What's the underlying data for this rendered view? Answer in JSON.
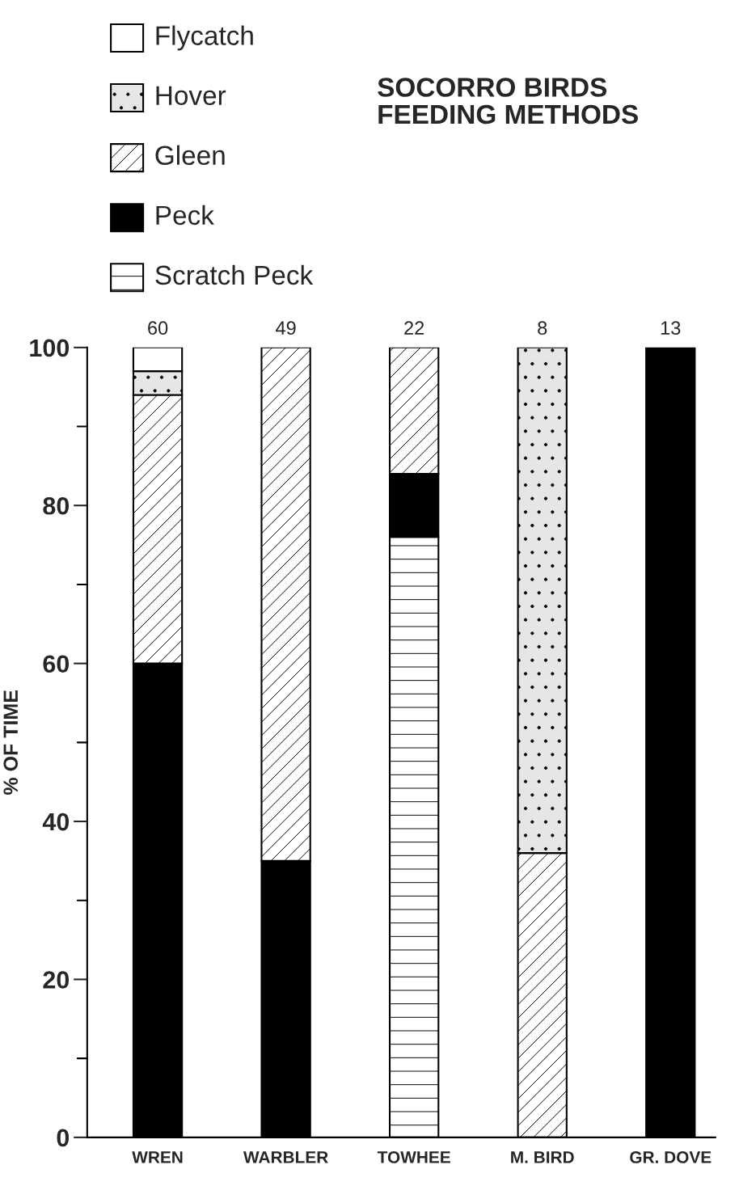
{
  "chart_data": {
    "type": "bar",
    "stacked": true,
    "title": "SOCORRO BIRDS\nFEEDING METHODS",
    "ylabel": "% OF TIME",
    "categories": [
      "WREN",
      "WARBLER",
      "TOWHEE",
      "M. BIRD",
      "GR. DOVE"
    ],
    "series": [
      {
        "name": "Scratch Peck",
        "color": "#ffffff",
        "values": [
          0,
          0,
          76,
          0,
          0
        ]
      },
      {
        "name": "Peck",
        "color": "#000000",
        "values": [
          60,
          35,
          8,
          0,
          100
        ]
      },
      {
        "name": "Gleen",
        "color": "#ffffff",
        "values": [
          34,
          65,
          16,
          36,
          0
        ]
      },
      {
        "name": "Hover",
        "color": "#e6e6e6",
        "values": [
          3,
          0,
          0,
          64,
          0
        ]
      },
      {
        "name": "Flycatch",
        "color": "#ffffff",
        "values": [
          3,
          0,
          0,
          0,
          0
        ]
      }
    ],
    "ylim": [
      0,
      100
    ],
    "yticks": [
      0,
      {
        "value": 10,
        "label": null
      },
      20,
      {
        "value": 30,
        "label": null
      },
      40,
      {
        "value": 50,
        "label": null
      },
      60,
      {
        "value": 70,
        "label": null
      },
      80,
      {
        "value": 90,
        "label": null
      },
      100
    ],
    "annotations": [
      {
        "text": "60",
        "x": "WREN",
        "y": 100
      },
      {
        "text": "49",
        "x": "WARBLER",
        "y": 100
      },
      {
        "text": "22",
        "x": "TOWHEE",
        "y": 100
      },
      {
        "text": "8",
        "x": "M. BIRD",
        "y": 100
      },
      {
        "text": "13",
        "x": "GR. DOVE",
        "y": 100
      }
    ],
    "legend": "top left",
    "grid": false
  }
}
